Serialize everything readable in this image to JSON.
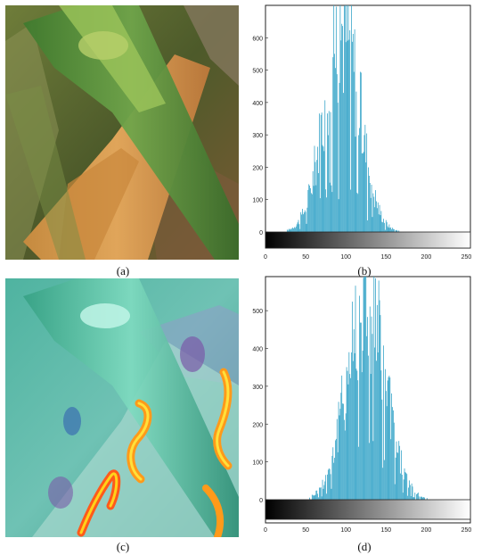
{
  "panels": {
    "a": {
      "label": "(a)"
    },
    "b": {
      "label": "(b)"
    },
    "c": {
      "label": "(c)"
    },
    "d": {
      "label": "(d)"
    }
  },
  "colors": {
    "bar": "#3aa6c9",
    "axis": "#222222",
    "background": "#ffffff"
  },
  "chart_data": [
    {
      "type": "bar",
      "panel": "b",
      "xlim": [
        0,
        255
      ],
      "ylim": [
        0,
        700
      ],
      "x_ticks": [
        0,
        50,
        100,
        150,
        200,
        250
      ],
      "y_ticks": [
        0,
        100,
        200,
        300,
        400,
        500,
        600
      ],
      "gray_colorbar": true,
      "distribution": {
        "center": 95,
        "spread": 22,
        "peak": 720,
        "min_x": 27,
        "max_x": 175
      }
    },
    {
      "type": "bar",
      "panel": "d",
      "xlim": [
        0,
        255
      ],
      "ylim": [
        0,
        590
      ],
      "x_ticks": [
        0,
        50,
        100,
        150,
        200,
        250
      ],
      "y_ticks": [
        0,
        100,
        200,
        300,
        400,
        500
      ],
      "gray_colorbar": true,
      "distribution": {
        "center": 125,
        "spread": 24,
        "peak": 590,
        "min_x": 55,
        "max_x": 210
      }
    }
  ]
}
